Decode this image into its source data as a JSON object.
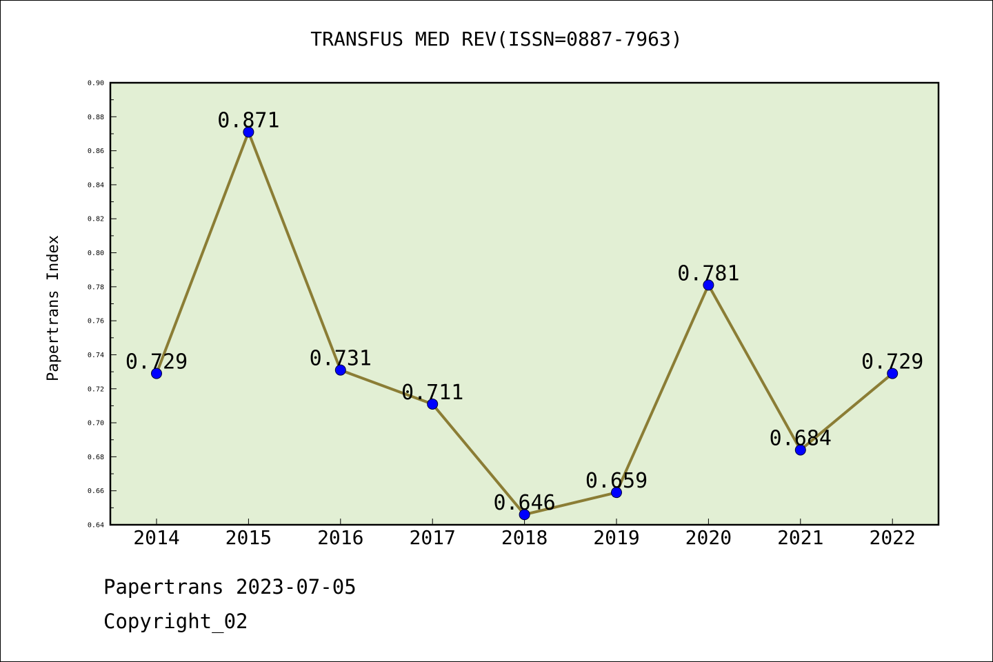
{
  "chart_data": {
    "type": "line",
    "title": "TRANSFUS MED REV(ISSN=0887-7963)",
    "xlabel": "",
    "ylabel": "Papertrans Index",
    "categories": [
      "2014",
      "2015",
      "2016",
      "2017",
      "2018",
      "2019",
      "2020",
      "2021",
      "2022"
    ],
    "series": [
      {
        "values": [
          0.729,
          0.871,
          0.731,
          0.711,
          0.646,
          0.659,
          0.781,
          0.684,
          0.729
        ],
        "value_labels": [
          "0.729",
          "0.871",
          "0.731",
          "0.711",
          "0.646",
          "0.659",
          "0.781",
          "0.684",
          "0.729"
        ]
      }
    ],
    "ylim": [
      0.64,
      0.9
    ],
    "y_ticks": [
      "0.64",
      "0.66",
      "0.68",
      "0.70",
      "0.72",
      "0.74",
      "0.76",
      "0.78",
      "0.80",
      "0.82",
      "0.84",
      "0.86",
      "0.88",
      "0.90"
    ],
    "grid": false,
    "legend": "none",
    "colors": {
      "plot_background": "#e2efd4",
      "line": "#8b7d35",
      "marker": "#0000ff"
    }
  },
  "footer": {
    "date_line": "Papertrans 2023-07-05",
    "copyright": "Copyright_02"
  }
}
